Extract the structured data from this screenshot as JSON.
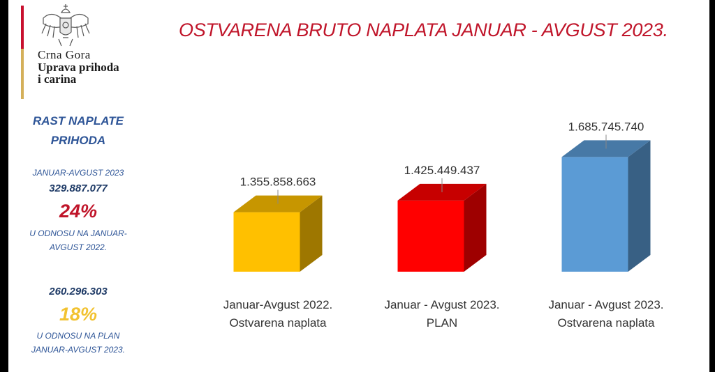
{
  "header": {
    "title": "OSTVARENA BRUTO NAPLATA JANUAR - AVGUST 2023.",
    "org_country": "Crna Gora",
    "org_name_line1": "Uprava prihoda",
    "org_name_line2": "i carina",
    "crest_icon": "montenegro-coat-of-arms-icon"
  },
  "growth": {
    "title_line1": "RAST NAPLATE",
    "title_line2": "PRIHODA",
    "period": "JANUAR-AVGUST 2023",
    "vs_prior": {
      "amount": "329.887.077",
      "percent": "24%",
      "note_line1": "U ODNOSU NA JANUAR-",
      "note_line2": "AVGUST 2022."
    },
    "vs_plan": {
      "amount": "260.296.303",
      "percent": "18%",
      "note_line1": "U ODNOSU NA PLAN",
      "note_line2": "JANUAR-AVGUST 2023."
    }
  },
  "colors": {
    "title_red": "#c0152a",
    "percent_red": "#c0152a",
    "percent_gold": "#f2c230",
    "bar_yellow": "#ffc000",
    "bar_red": "#ff0000",
    "bar_blue": "#5b9bd5"
  },
  "chart_data": {
    "type": "bar",
    "style": "3d-column",
    "categories": [
      [
        "Januar-Avgust 2022.",
        "Ostvarena naplata"
      ],
      [
        "Januar - Avgust 2023.",
        "PLAN"
      ],
      [
        "Januar - Avgust 2023.",
        "Ostvarena naplata"
      ]
    ],
    "values": [
      1355858663,
      1425449437,
      1685745740
    ],
    "data_labels": [
      "1.355.858.663",
      "1.425.449.437",
      "1.685.745.740"
    ],
    "bar_colors": [
      "#ffc000",
      "#ff0000",
      "#5b9bd5"
    ],
    "ylim": [
      1000000000,
      1750000000
    ],
    "grid": false,
    "legend": "none"
  }
}
